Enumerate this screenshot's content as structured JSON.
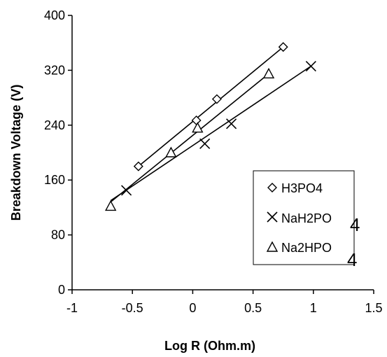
{
  "chart_data": {
    "type": "scatter",
    "title": "",
    "xlabel": "Log R (Ohm.m)",
    "ylabel": "Breakdown Voltage (V)",
    "xlim": [
      -1,
      1.5
    ],
    "ylim": [
      0,
      400
    ],
    "x_ticks": [
      "-1",
      "-0.5",
      "0",
      "0.5",
      "1",
      "1.5"
    ],
    "y_ticks": [
      "0",
      "80",
      "160",
      "240",
      "320",
      "400"
    ],
    "grid": false,
    "legend_position": "right",
    "series": [
      {
        "name": "H3PO4",
        "marker": "diamond",
        "points": [
          [
            -0.45,
            180
          ],
          [
            0.03,
            247
          ],
          [
            0.2,
            278
          ],
          [
            0.75,
            354
          ]
        ],
        "fit": [
          [
            -0.45,
            180
          ],
          [
            0.75,
            354
          ]
        ]
      },
      {
        "name": "NaH2PO4",
        "marker": "x",
        "points": [
          [
            -0.55,
            145
          ],
          [
            0.1,
            213
          ],
          [
            0.32,
            242
          ],
          [
            0.98,
            326
          ]
        ],
        "fit": [
          [
            -0.68,
            130
          ],
          [
            0.98,
            326
          ]
        ]
      },
      {
        "name": "Na2HPO4",
        "marker": "triangle",
        "points": [
          [
            -0.68,
            122
          ],
          [
            -0.18,
            200
          ],
          [
            0.04,
            236
          ],
          [
            0.63,
            315
          ]
        ],
        "fit": [
          [
            -0.68,
            128
          ],
          [
            0.63,
            315
          ]
        ]
      }
    ]
  },
  "legend": {
    "items": [
      "H3PO4",
      "NaH2PO",
      "Na2HPO"
    ],
    "subscript": "4"
  }
}
